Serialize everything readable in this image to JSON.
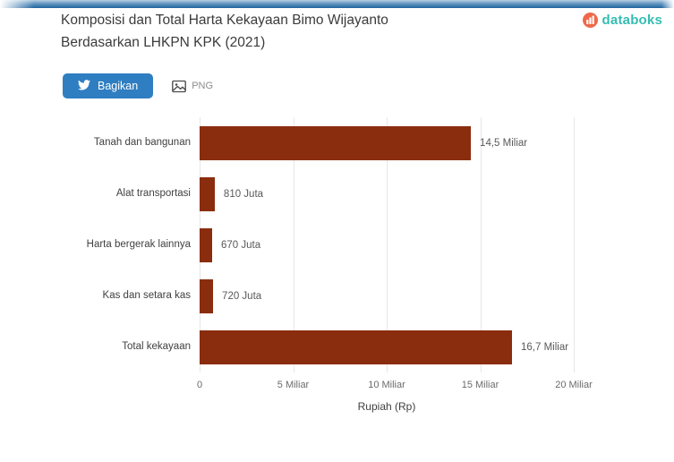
{
  "header": {
    "title_line1": "Komposisi dan Total Harta Kekayaan Bimo Wijayanto",
    "title_line2": "Berdasarkan LHKPN KPK (2021)",
    "logo": {
      "text": "databoks",
      "text_color": "#35bdb2",
      "icon_color": "#f0684a",
      "icon": "databoks-icon"
    }
  },
  "toolbar": {
    "share_label": "Bagikan",
    "share_icon": "twitter-bird-icon",
    "share_bg": "#2f7ec1",
    "download_label": "PNG",
    "download_icon": "image-icon"
  },
  "chart_data": {
    "type": "bar",
    "orientation": "horizontal",
    "title": "Komposisi dan Total Harta Kekayaan Bimo Wijayanto Berdasarkan LHKPN KPK (2021)",
    "categories": [
      "Tanah dan bangunan",
      "Alat transportasi",
      "Harta bergerak lainnya",
      "Kas dan setara kas",
      "Total kekayaan"
    ],
    "values_miliar": [
      14.5,
      0.81,
      0.67,
      0.72,
      16.7
    ],
    "value_labels": [
      "14,5 Miliar",
      "810 Juta",
      "670 Juta",
      "720 Juta",
      "16,7 Miliar"
    ],
    "xlabel": "Rupiah (Rp)",
    "xlim": [
      0,
      20
    ],
    "xticks": [
      {
        "value": 0,
        "label": "0"
      },
      {
        "value": 5,
        "label": "5 Miliar"
      },
      {
        "value": 10,
        "label": "10 Miliar"
      },
      {
        "value": 15,
        "label": "15 Miliar"
      },
      {
        "value": 20,
        "label": "20 Miliar"
      }
    ],
    "bar_color": "#8a2d0e",
    "grid": true,
    "legend": false
  }
}
